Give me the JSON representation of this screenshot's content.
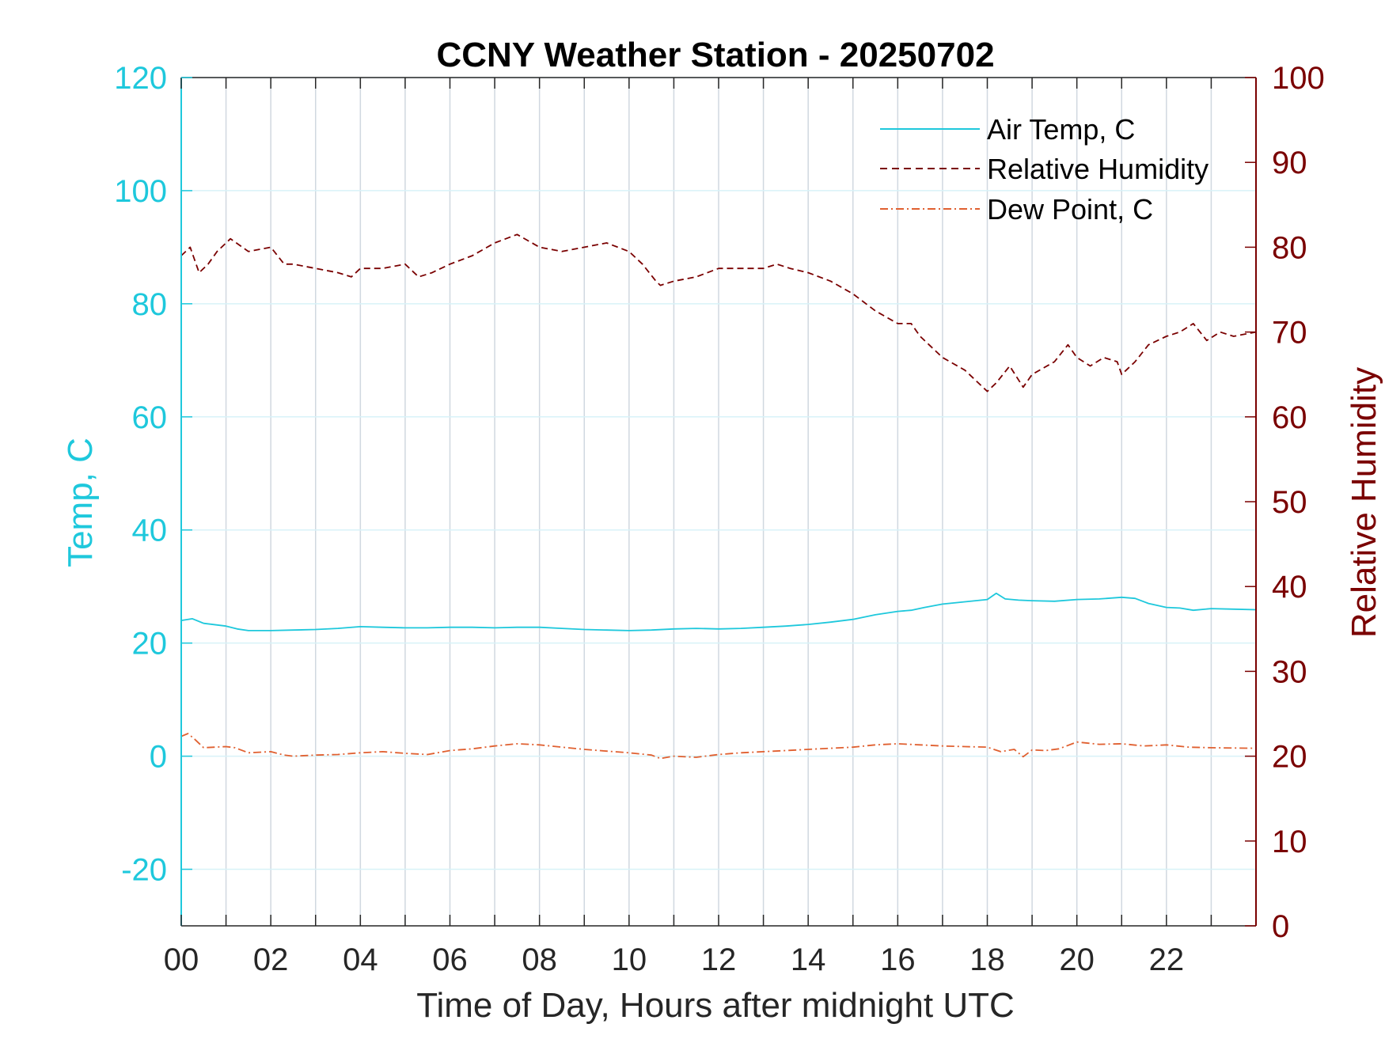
{
  "chart_data": {
    "type": "line",
    "title": "CCNY Weather Station - 20250702",
    "xlabel": "Time of Day, Hours after midnight UTC",
    "ylabel_left": "Temp, C",
    "ylabel_right": "Relative Humidity",
    "xlim": [
      0,
      24
    ],
    "ylim_left": [
      -30,
      120
    ],
    "ylim_right": [
      0,
      100
    ],
    "x_ticks": [
      "00",
      "02",
      "04",
      "06",
      "08",
      "10",
      "12",
      "14",
      "16",
      "18",
      "20",
      "22"
    ],
    "y_ticks_left": [
      "-20",
      "0",
      "20",
      "40",
      "60",
      "80",
      "100",
      "120"
    ],
    "y_ticks_right": [
      "0",
      "10",
      "20",
      "30",
      "40",
      "50",
      "60",
      "70",
      "80",
      "90",
      "100"
    ],
    "grid": "vertical every hour, horizontal at left ticks",
    "legend_position": "top-right",
    "colors": {
      "temp": "#1ec8dc",
      "rh": "#7a0000",
      "dew": "#e06030",
      "grid": "#d0d8e0",
      "hgrid": "#d8f2f8"
    },
    "series": [
      {
        "name": "Air Temp, C",
        "axis": "left",
        "style": "solid",
        "x": [
          0,
          0.25,
          0.5,
          1,
          1.25,
          1.5,
          2,
          2.5,
          3,
          3.5,
          4,
          4.5,
          5,
          5.5,
          6,
          6.5,
          7,
          7.5,
          8,
          8.5,
          9,
          9.5,
          10,
          10.5,
          11,
          11.5,
          12,
          12.5,
          13,
          13.5,
          14,
          14.5,
          15,
          15.5,
          16,
          16.3,
          16.6,
          17,
          17.5,
          18,
          18.2,
          18.4,
          18.7,
          19,
          19.5,
          20,
          20.5,
          21,
          21.3,
          21.6,
          22,
          22.3,
          22.6,
          23,
          23.5,
          24
        ],
        "y": [
          24,
          24.3,
          23.5,
          23,
          22.5,
          22.2,
          22.2,
          22.3,
          22.4,
          22.6,
          22.9,
          22.8,
          22.7,
          22.7,
          22.8,
          22.8,
          22.7,
          22.8,
          22.8,
          22.6,
          22.4,
          22.3,
          22.2,
          22.3,
          22.5,
          22.6,
          22.5,
          22.6,
          22.8,
          23,
          23.3,
          23.7,
          24.2,
          25,
          25.6,
          25.8,
          26.3,
          26.9,
          27.3,
          27.7,
          28.8,
          27.8,
          27.6,
          27.5,
          27.4,
          27.7,
          27.8,
          28.1,
          27.9,
          27.0,
          26.3,
          26.2,
          25.8,
          26.1,
          26.0,
          25.9
        ]
      },
      {
        "name": "Relative Humidity",
        "axis": "right",
        "style": "dashed",
        "x": [
          0,
          0.2,
          0.4,
          0.6,
          0.8,
          1.1,
          1.5,
          2,
          2.3,
          2.5,
          3,
          3.5,
          3.8,
          4,
          4.5,
          5,
          5.3,
          5.6,
          6,
          6.5,
          7,
          7.5,
          8,
          8.5,
          9,
          9.5,
          10,
          10.3,
          10.6,
          10.7,
          11,
          11.5,
          12,
          12.5,
          13,
          13.3,
          13.6,
          14,
          14.5,
          15,
          15.5,
          16,
          16.3,
          16.5,
          17,
          17.5,
          18,
          18.2,
          18.5,
          18.8,
          19,
          19.5,
          19.8,
          20,
          20.3,
          20.6,
          20.9,
          21,
          21.3,
          21.6,
          22,
          22.3,
          22.6,
          22.9,
          23.2,
          23.5,
          24
        ],
        "y": [
          79,
          80,
          77,
          78,
          79.5,
          81,
          79.5,
          80,
          78,
          78,
          77.5,
          77,
          76.5,
          77.5,
          77.5,
          78,
          76.5,
          77,
          78,
          79,
          80.5,
          81.5,
          80,
          79.5,
          80,
          80.5,
          79.5,
          78,
          76,
          75.5,
          76,
          76.5,
          77.5,
          77.5,
          77.5,
          78,
          77.5,
          77,
          76,
          74.5,
          72.5,
          71,
          71,
          69.5,
          67,
          65.5,
          63,
          64,
          66,
          63.5,
          65,
          66.5,
          68.5,
          67,
          66,
          67,
          66.5,
          65,
          66.5,
          68.5,
          69.5,
          70,
          71,
          69,
          70,
          69.5,
          70
        ]
      },
      {
        "name": "Dew Point, C",
        "axis": "left",
        "style": "dash-dot",
        "x": [
          0,
          0.15,
          0.3,
          0.5,
          1,
          1.2,
          1.5,
          2,
          2.3,
          2.5,
          3,
          3.5,
          4,
          4.5,
          5,
          5.5,
          6,
          6.5,
          7,
          7.5,
          8,
          8.5,
          9,
          9.5,
          10,
          10.5,
          10.7,
          11,
          11.5,
          12,
          12.5,
          13,
          13.5,
          14,
          14.5,
          15,
          15.5,
          16,
          16.5,
          17,
          17.5,
          18,
          18.3,
          18.6,
          18.8,
          19,
          19.3,
          19.6,
          20,
          20.5,
          21,
          21.5,
          22,
          22.5,
          23,
          24
        ],
        "y": [
          3.5,
          4.0,
          3.0,
          1.5,
          1.7,
          1.5,
          0.6,
          0.8,
          0.2,
          0.0,
          0.2,
          0.3,
          0.6,
          0.8,
          0.5,
          0.3,
          1.0,
          1.3,
          1.8,
          2.2,
          2.0,
          1.6,
          1.2,
          0.9,
          0.6,
          0.2,
          -0.4,
          0,
          -0.2,
          0.3,
          0.6,
          0.8,
          1.0,
          1.2,
          1.4,
          1.6,
          2.0,
          2.2,
          2.0,
          1.8,
          1.7,
          1.6,
          0.8,
          1.2,
          -0.1,
          1.1,
          1.0,
          1.3,
          2.5,
          2.1,
          2.2,
          1.8,
          2.0,
          1.6,
          1.5,
          1.4
        ]
      }
    ]
  }
}
